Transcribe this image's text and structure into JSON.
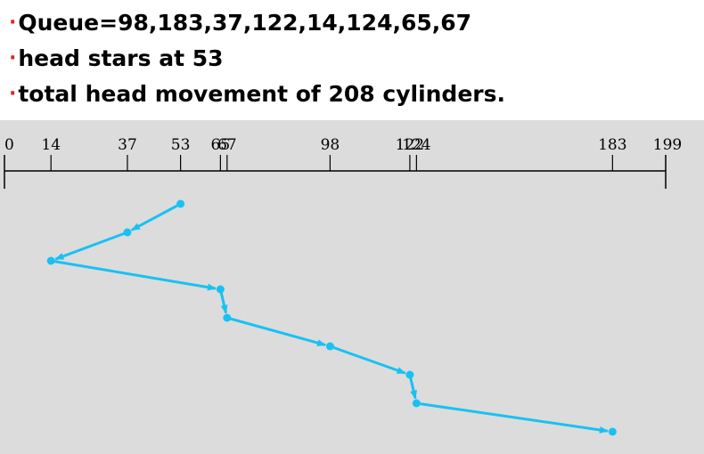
{
  "bullets": [
    {
      "text": "Queue=98,183,37,122,14,124,65,67"
    },
    {
      "text": "head stars at 53"
    },
    {
      "text": "total head movement of 208 cylinders."
    }
  ],
  "colors": {
    "bullet": "#e0242a",
    "path": "#19c1f2",
    "panel": "#dcdcdc",
    "axis": "#000000"
  },
  "axis": {
    "min": 0,
    "max": 199,
    "ticks": [
      {
        "value": 0,
        "label": "0"
      },
      {
        "value": 14,
        "label": "14"
      },
      {
        "value": 37,
        "label": "37"
      },
      {
        "value": 53,
        "label": "53"
      },
      {
        "value": 65,
        "label": "65"
      },
      {
        "value": 67,
        "label": "67"
      },
      {
        "value": 98,
        "label": "98"
      },
      {
        "value": 122,
        "label": "122"
      },
      {
        "value": 124,
        "label": "124"
      },
      {
        "value": 183,
        "label": "183"
      },
      {
        "value": 199,
        "label": "199"
      }
    ]
  },
  "head_path": [
    53,
    37,
    14,
    65,
    67,
    98,
    122,
    124,
    183
  ]
}
